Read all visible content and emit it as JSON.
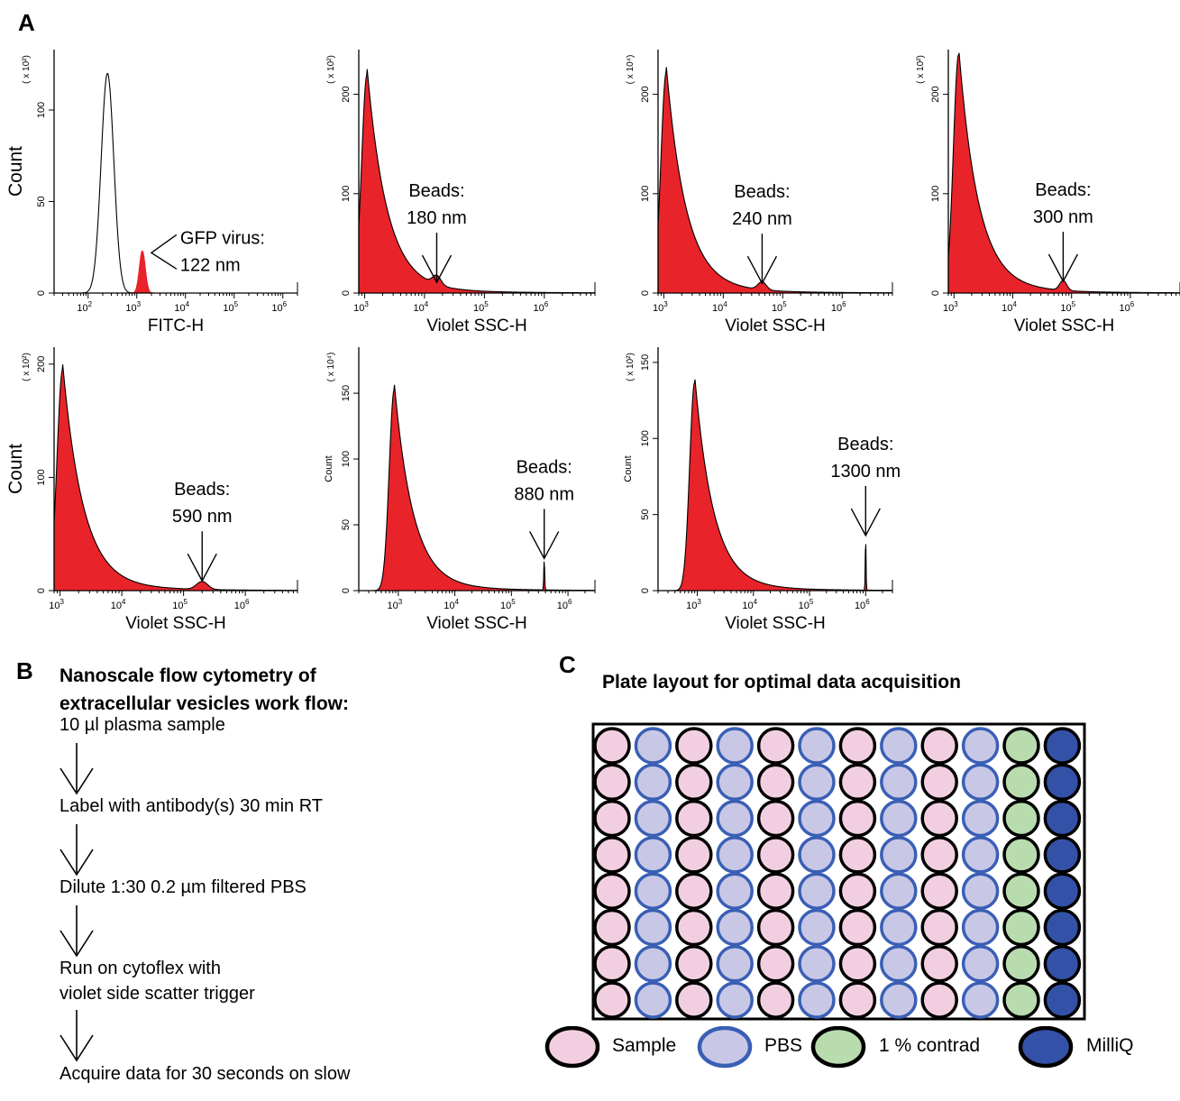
{
  "panels": {
    "a": "A",
    "b": "B",
    "c": "C"
  },
  "chart_data": [
    {
      "type": "area",
      "title": "",
      "xlabel": "FITC-H",
      "ylabel": "Count",
      "multiplier": "( x 10²)",
      "xscale": "log",
      "xlim": [
        20,
        2000000
      ],
      "ylim": [
        0,
        133
      ],
      "xticks": [
        [
          "10",
          "2"
        ],
        [
          "10",
          "3"
        ],
        [
          "10",
          "4"
        ],
        [
          "10",
          "5"
        ],
        [
          "10",
          "6"
        ]
      ],
      "yticks": [
        0,
        50,
        100
      ],
      "series": [
        {
          "name": "",
          "fill": "none",
          "peaks": [
            [
              250,
              120,
              0.13
            ]
          ]
        },
        {
          "name": "",
          "fill": "red",
          "peaks": [
            [
              1300,
              23,
              0.06
            ]
          ]
        }
      ],
      "annotation": [
        "GFP virus:",
        "122 nm"
      ],
      "annotation_x": 1300
    },
    {
      "type": "area",
      "title": "",
      "xlabel": "Violet SSC-H",
      "ylabel": "",
      "multiplier": "( x 10²)",
      "xscale": "log",
      "xlim": [
        800,
        7000000
      ],
      "ylim": [
        0,
        245
      ],
      "xticks": [
        [
          "10",
          "3"
        ],
        [
          "10",
          "4"
        ],
        [
          "10",
          "5"
        ],
        [
          "10",
          "6"
        ]
      ],
      "yticks": [
        0,
        100,
        200
      ],
      "main_peak": [
        1100,
        220
      ],
      "bead": [
        16000,
        9,
        0.07
      ],
      "annotation": [
        "Beads:",
        "180 nm"
      ],
      "annotation_x": 16000
    },
    {
      "type": "area",
      "title": "",
      "xlabel": "Violet SSC-H",
      "ylabel": "",
      "multiplier": "( x 10⁴)",
      "xscale": "log",
      "xlim": [
        800,
        7000000
      ],
      "ylim": [
        0,
        245
      ],
      "xticks": [
        [
          "10",
          "3"
        ],
        [
          "10",
          "4"
        ],
        [
          "10",
          "5"
        ],
        [
          "10",
          "6"
        ]
      ],
      "yticks": [
        0,
        100,
        200
      ],
      "main_peak": [
        1100,
        222
      ],
      "bead": [
        45000,
        8,
        0.07
      ],
      "annotation": [
        "Beads:",
        "240 nm"
      ],
      "annotation_x": 45000
    },
    {
      "type": "area",
      "title": "",
      "xlabel": "Violet SSC-H",
      "ylabel": "",
      "multiplier": "( x 10²)",
      "xscale": "log",
      "xlim": [
        800,
        7000000
      ],
      "ylim": [
        0,
        245
      ],
      "xticks": [
        [
          "10",
          "3"
        ],
        [
          "10",
          "4"
        ],
        [
          "10",
          "5"
        ],
        [
          "10",
          "6"
        ]
      ],
      "yticks": [
        0,
        100,
        200
      ],
      "main_peak": [
        1200,
        240
      ],
      "bead": [
        72000,
        10,
        0.06
      ],
      "annotation": [
        "Beads:",
        "300 nm"
      ],
      "annotation_x": 72000
    },
    {
      "type": "area",
      "title": "",
      "xlabel": "Violet SSC-H",
      "ylabel": "Count",
      "multiplier": "( x 10²)",
      "xscale": "log",
      "xlim": [
        800,
        7000000
      ],
      "ylim": [
        0,
        215
      ],
      "xticks": [
        [
          "10",
          "3"
        ],
        [
          "10",
          "4"
        ],
        [
          "10",
          "5"
        ],
        [
          "10",
          "6"
        ]
      ],
      "yticks": [
        0,
        100,
        200
      ],
      "main_peak": [
        1100,
        195
      ],
      "bead": [
        200000,
        7,
        0.09
      ],
      "annotation": [
        "Beads:",
        "590 nm"
      ],
      "annotation_x": 200000
    },
    {
      "type": "area",
      "title": "",
      "xlabel": "Violet SSC-H",
      "ylabel": "Count",
      "multiplier": "( x 10⁴)",
      "xscale": "log",
      "xlim": [
        200,
        3000000
      ],
      "ylim": [
        0,
        185
      ],
      "xticks": [
        [
          "10",
          "3"
        ],
        [
          "10",
          "4"
        ],
        [
          "10",
          "5"
        ],
        [
          "10",
          "6"
        ]
      ],
      "yticks": [
        0,
        50,
        100,
        150
      ],
      "main_peak": [
        850,
        153
      ],
      "bead": [
        380000,
        23,
        0.008
      ],
      "annotation": [
        "Beads:",
        "880 nm"
      ],
      "annotation_x": 380000
    },
    {
      "type": "area",
      "title": "",
      "xlabel": "Violet SSC-H",
      "ylabel": "Count",
      "multiplier": "( x 10²)",
      "xscale": "log",
      "xlim": [
        200,
        3000000
      ],
      "ylim": [
        0,
        160
      ],
      "xticks": [
        [
          "10",
          "3"
        ],
        [
          "10",
          "4"
        ],
        [
          "10",
          "5"
        ],
        [
          "10",
          "6"
        ]
      ],
      "yticks": [
        0,
        50,
        100,
        150
      ],
      "main_peak": [
        900,
        137
      ],
      "bead": [
        1000000,
        35,
        0.007
      ],
      "annotation": [
        "Beads:",
        "1300 nm"
      ],
      "annotation_x": 1000000
    }
  ],
  "workflow": {
    "title_line1": "Nanoscale flow cytometry of",
    "title_line2": "extracellular vesicles work flow:",
    "steps": [
      "10 µl plasma sample",
      "Label with antibody(s) 30 min RT",
      "Dilute 1:30 0.2 µm filtered PBS",
      "Run on cytoflex with",
      "violet side scatter trigger",
      "Acquire data for 30 seconds on slow"
    ]
  },
  "plate": {
    "title": "Plate layout for optimal data acquisition",
    "rows": 8,
    "column_types": [
      "sample",
      "pbs",
      "sample",
      "pbs",
      "sample",
      "pbs",
      "sample",
      "pbs",
      "sample",
      "pbs",
      "contrad",
      "milliq"
    ],
    "legend": [
      {
        "key": "sample",
        "label": "Sample"
      },
      {
        "key": "pbs",
        "label": "PBS"
      },
      {
        "key": "contrad",
        "label": "1 % contrad"
      },
      {
        "key": "milliq",
        "label": "MilliQ"
      }
    ],
    "colors": {
      "sample": {
        "fill": "#f2cfe0",
        "stroke": "#000000"
      },
      "pbs": {
        "fill": "#c8c8e6",
        "stroke": "#3a5fb5"
      },
      "contrad": {
        "fill": "#b8dcae",
        "stroke": "#000000"
      },
      "milliq": {
        "fill": "#3451a8",
        "stroke": "#000000"
      }
    }
  },
  "colors": {
    "histogram_fill": "#e8232a"
  }
}
